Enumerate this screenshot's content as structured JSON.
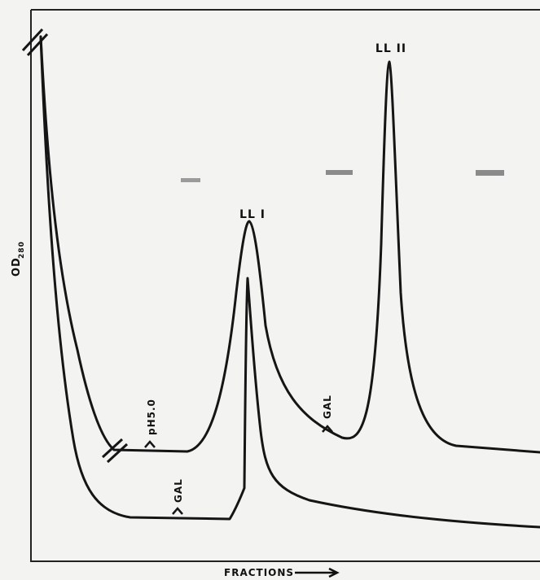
{
  "axes": {
    "y_label": "OD",
    "y_label_sub": "280",
    "x_label": "FRACTIONS"
  },
  "peaks": [
    {
      "label": "LL I"
    },
    {
      "label": "LL II"
    }
  ],
  "annotations": [
    {
      "label": "pH5.0"
    },
    {
      "label": "GAL"
    },
    {
      "label": "GAL"
    }
  ]
}
